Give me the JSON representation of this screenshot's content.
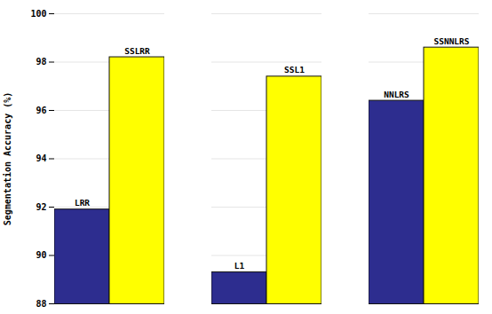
{
  "chart_data": {
    "type": "bar",
    "ylabel": "Segmentation Accuracy (%)",
    "categories": [
      null,
      null,
      null
    ],
    "series": [
      {
        "color": "#2d2d8f",
        "values": [
          91.9,
          89.3,
          96.4
        ],
        "labels": [
          "LRR",
          "L1",
          "NNLRS"
        ]
      },
      {
        "color": "#ffff00",
        "values": [
          98.2,
          97.4,
          98.6
        ],
        "labels": [
          "SSLRR",
          "SSL1",
          "SSNNLRS"
        ]
      }
    ],
    "ylim": [
      88,
      100
    ],
    "yticks": [
      88,
      90,
      92,
      94,
      96,
      98,
      100
    ],
    "grid": true,
    "tick_labels": "y"
  }
}
